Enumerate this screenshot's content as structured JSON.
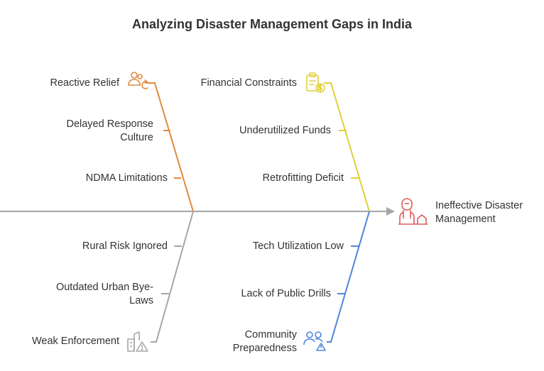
{
  "title": "Analyzing Disaster Management Gaps in India",
  "effect": {
    "line1": "Ineffective Disaster",
    "line2": "Management",
    "color": "#e05a5a",
    "icon": "disaster-person-house-icon"
  },
  "branches": [
    {
      "id": "social",
      "color": "#e08a3c",
      "icon": "people-refresh-icon",
      "causes": [
        {
          "lines": [
            "Reactive Relief"
          ]
        },
        {
          "lines": [
            "Delayed Response",
            "Culture"
          ]
        },
        {
          "lines": [
            "NDMA Limitations"
          ]
        }
      ]
    },
    {
      "id": "financial",
      "color": "#e2cf3a",
      "icon": "clipboard-money-icon",
      "causes": [
        {
          "lines": [
            "Financial Constraints"
          ]
        },
        {
          "lines": [
            "Underutilized Funds"
          ]
        },
        {
          "lines": [
            "Retrofitting Deficit"
          ]
        }
      ]
    },
    {
      "id": "urban",
      "color": "#a6a6a6",
      "icon": "building-warning-icon",
      "causes": [
        {
          "lines": [
            "Rural Risk Ignored"
          ]
        },
        {
          "lines": [
            "Outdated Urban Bye-",
            "Laws"
          ]
        },
        {
          "lines": [
            "Weak Enforcement"
          ]
        }
      ]
    },
    {
      "id": "community",
      "color": "#4f86d9",
      "icon": "people-warning-icon",
      "causes": [
        {
          "lines": [
            "Tech Utilization Low"
          ]
        },
        {
          "lines": [
            "Lack of Public Drills"
          ]
        },
        {
          "lines": [
            "Community",
            "Preparedness"
          ]
        }
      ]
    }
  ],
  "spine_color": "#a6a6a6"
}
